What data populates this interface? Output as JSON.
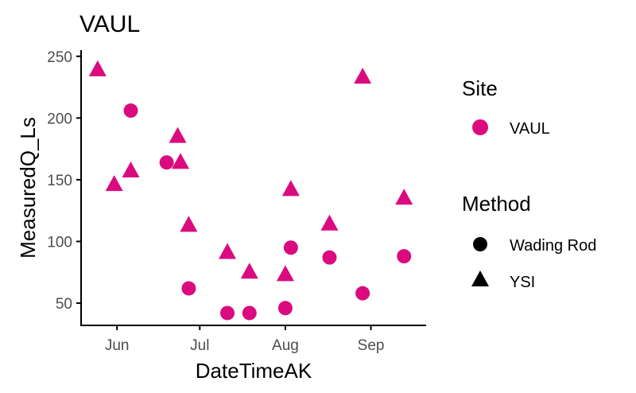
{
  "chart_data": {
    "type": "scatter",
    "title": "VAUL",
    "xlabel": "DateTimeAK",
    "ylabel": "MeasuredQ_Ls",
    "xlim": [
      "2019-05-19",
      "2019-09-21"
    ],
    "ylim": [
      32,
      255
    ],
    "x_ticks": [
      {
        "date": "2019-06-01",
        "label": "Jun"
      },
      {
        "date": "2019-07-01",
        "label": "Jul"
      },
      {
        "date": "2019-08-01",
        "label": "Aug"
      },
      {
        "date": "2019-09-01",
        "label": "Sep"
      }
    ],
    "y_ticks": [
      50,
      100,
      150,
      200,
      250
    ],
    "grid": false,
    "point_color": "#DB0B7F",
    "legend": {
      "placement": "right",
      "site": {
        "title": "Site",
        "entries": [
          "VAUL"
        ]
      },
      "method": {
        "title": "Method",
        "entries": [
          "Wading Rod",
          "YSI"
        ]
      }
    },
    "series": [
      {
        "name": "Wading Rod",
        "shape": "circle",
        "points": [
          {
            "x": "2019-06-06",
            "y": 206
          },
          {
            "x": "2019-06-19",
            "y": 164
          },
          {
            "x": "2019-06-27",
            "y": 62
          },
          {
            "x": "2019-07-11",
            "y": 42
          },
          {
            "x": "2019-07-19",
            "y": 42
          },
          {
            "x": "2019-08-01",
            "y": 46
          },
          {
            "x": "2019-08-03",
            "y": 95
          },
          {
            "x": "2019-08-17",
            "y": 87
          },
          {
            "x": "2019-08-29",
            "y": 58
          },
          {
            "x": "2019-09-13",
            "y": 88
          }
        ]
      },
      {
        "name": "YSI",
        "shape": "triangle",
        "points": [
          {
            "x": "2019-05-25",
            "y": 239
          },
          {
            "x": "2019-05-31",
            "y": 146
          },
          {
            "x": "2019-06-06",
            "y": 157
          },
          {
            "x": "2019-06-23",
            "y": 185
          },
          {
            "x": "2019-06-24",
            "y": 164
          },
          {
            "x": "2019-06-27",
            "y": 113
          },
          {
            "x": "2019-07-11",
            "y": 91
          },
          {
            "x": "2019-07-19",
            "y": 75
          },
          {
            "x": "2019-08-01",
            "y": 73
          },
          {
            "x": "2019-08-03",
            "y": 142
          },
          {
            "x": "2019-08-17",
            "y": 114
          },
          {
            "x": "2019-08-29",
            "y": 233
          },
          {
            "x": "2019-09-13",
            "y": 135
          }
        ]
      }
    ]
  }
}
